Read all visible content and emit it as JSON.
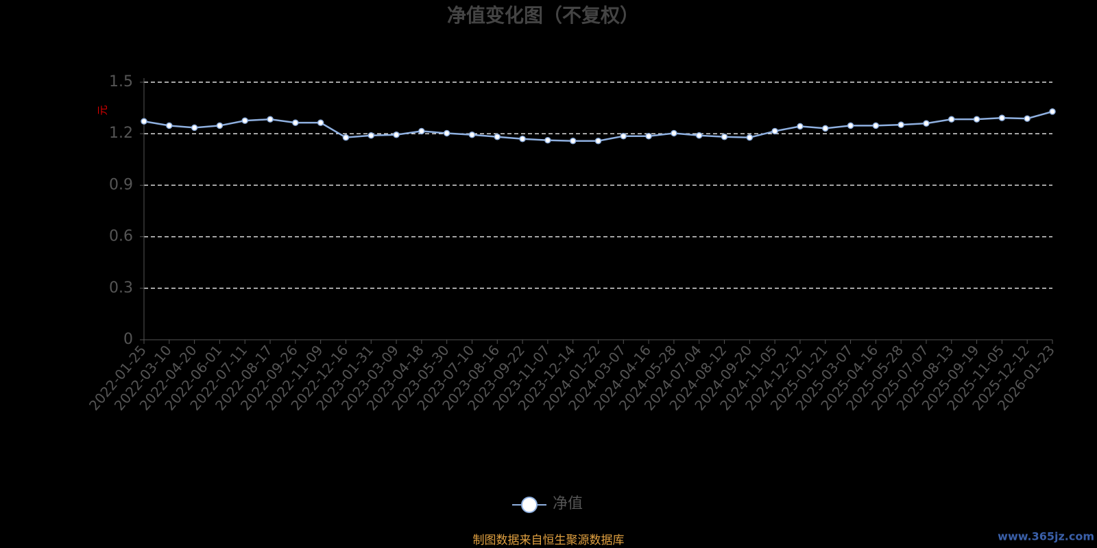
{
  "chart_data": {
    "type": "line",
    "title": "净值变化图（不复权）",
    "y_label": "元",
    "categories": [
      "2022-01-25",
      "2022-03-10",
      "2022-04-20",
      "2022-06-01",
      "2022-07-11",
      "2022-08-17",
      "2022-09-26",
      "2022-11-09",
      "2022-12-16",
      "2023-01-31",
      "2023-03-09",
      "2023-04-18",
      "2023-05-30",
      "2023-07-10",
      "2023-08-16",
      "2023-09-22",
      "2023-11-07",
      "2023-12-14",
      "2024-01-22",
      "2024-03-07",
      "2024-04-16",
      "2024-05-28",
      "2024-07-04",
      "2024-08-12",
      "2024-09-20",
      "2024-11-05",
      "2024-12-12",
      "2025-01-21",
      "2025-03-07",
      "2025-04-16",
      "2025-05-28",
      "2025-07-07",
      "2025-08-13",
      "2025-09-19",
      "2025-11-05",
      "2025-12-12",
      "2026-01-23"
    ],
    "series": [
      {
        "name": "净值",
        "color": "#8fb0e0",
        "values": [
          1.272,
          1.247,
          1.235,
          1.247,
          1.276,
          1.284,
          1.264,
          1.264,
          1.178,
          1.19,
          1.194,
          1.215,
          1.203,
          1.194,
          1.182,
          1.17,
          1.162,
          1.158,
          1.158,
          1.186,
          1.186,
          1.203,
          1.19,
          1.182,
          1.178,
          1.215,
          1.243,
          1.231,
          1.247,
          1.247,
          1.252,
          1.26,
          1.284,
          1.284,
          1.292,
          1.288,
          1.329
        ]
      }
    ],
    "ylim": [
      0,
      1.5
    ],
    "yticks": [
      0,
      0.3,
      0.6,
      0.9,
      1.2,
      1.5
    ],
    "grid": true,
    "footer": "制图数据来自恒生聚源数据库",
    "watermark": "www.365jz.com"
  }
}
